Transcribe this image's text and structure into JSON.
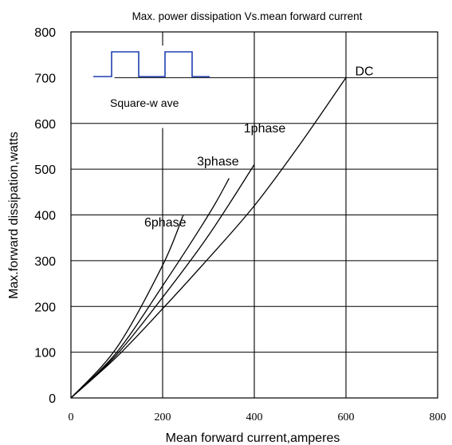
{
  "chart_data": {
    "type": "line",
    "title": "Max. power dissipation  Vs.mean  forward  current",
    "xlabel": "Mean  forward   current,amperes",
    "ylabel": "Max.forward  dissipation,watts",
    "xlim": [
      0,
      800
    ],
    "ylim": [
      0,
      800
    ],
    "x_ticks": [
      "0",
      "200",
      "400",
      "600",
      "800"
    ],
    "y_ticks": [
      "0",
      "100",
      "200",
      "300",
      "400",
      "500",
      "600",
      "700",
      "800"
    ],
    "grid": true,
    "series": [
      {
        "name": "DC",
        "x": [
          0,
          100,
          200,
          300,
          400,
          500,
          600
        ],
        "y": [
          0,
          90,
          195,
          305,
          420,
          555,
          700
        ]
      },
      {
        "name": "1phase",
        "x": [
          0,
          100,
          200,
          300,
          400
        ],
        "y": [
          0,
          95,
          220,
          355,
          510
        ]
      },
      {
        "name": "3phase",
        "x": [
          0,
          100,
          200,
          300,
          345
        ],
        "y": [
          0,
          100,
          245,
          400,
          480
        ]
      },
      {
        "name": "6phase",
        "x": [
          0,
          100,
          200,
          245
        ],
        "y": [
          0,
          110,
          290,
          400
        ]
      }
    ],
    "inset": {
      "label": "Square-w ave"
    }
  }
}
